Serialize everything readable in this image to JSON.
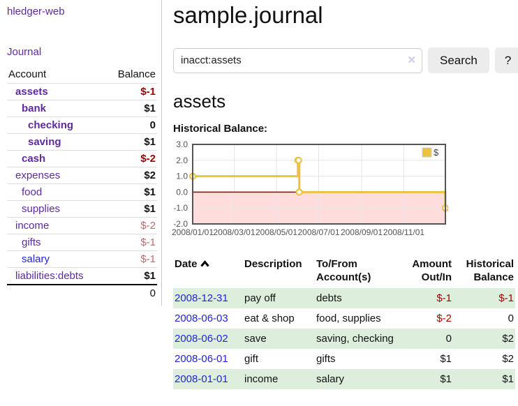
{
  "app": {
    "title": "hledger-web"
  },
  "nav": {
    "journal": "Journal"
  },
  "sidebar": {
    "header": {
      "account": "Account",
      "balance": "Balance"
    },
    "accounts": [
      {
        "name": "assets",
        "balance": "$-1"
      },
      {
        "name": "bank",
        "balance": "$1"
      },
      {
        "name": "checking",
        "balance": "0"
      },
      {
        "name": "saving",
        "balance": "$1"
      },
      {
        "name": "cash",
        "balance": "$-2"
      },
      {
        "name": "expenses",
        "balance": "$2"
      },
      {
        "name": "food",
        "balance": "$1"
      },
      {
        "name": "supplies",
        "balance": "$1"
      },
      {
        "name": "income",
        "balance": "$-2"
      },
      {
        "name": "gifts",
        "balance": "$-1"
      },
      {
        "name": "salary",
        "balance": "$-1"
      },
      {
        "name": "liabilities:debts",
        "balance": "$1"
      }
    ],
    "total": "0"
  },
  "header": {
    "title": "sample.journal"
  },
  "search": {
    "value": "inacct:assets",
    "clear_label": "✕",
    "button_label": "Search",
    "help_label": "?"
  },
  "register": {
    "heading": "assets",
    "chart_title": "Historical Balance:"
  },
  "chart_data": {
    "type": "line",
    "style": "steps",
    "title": "Historical Balance:",
    "series": [
      {
        "name": "$",
        "color": "#edc240",
        "points": [
          [
            "2008-01-01",
            1
          ],
          [
            "2008-06-01",
            2
          ],
          [
            "2008-06-02",
            2
          ],
          [
            "2008-06-03",
            0
          ],
          [
            "2008-12-31",
            -1
          ]
        ]
      }
    ],
    "x_range": [
      "2008-01-01",
      "2008-12-31"
    ],
    "y_range": [
      -2,
      3
    ],
    "x_ticks": [
      {
        "date": "2008-01-01",
        "label": "2008/01/01"
      },
      {
        "date": "2008-03-01",
        "label": "2008/03/01"
      },
      {
        "date": "2008-05-01",
        "label": "2008/05/01"
      },
      {
        "date": "2008-07-01",
        "label": "2008/07/01"
      },
      {
        "date": "2008-09-01",
        "label": "2008/09/01"
      },
      {
        "date": "2008-11-01",
        "label": "2008/11/01"
      }
    ],
    "y_ticks": [
      {
        "value": 3,
        "label": "3.0"
      },
      {
        "value": 2,
        "label": "2.0"
      },
      {
        "value": 1,
        "label": "1.0"
      },
      {
        "value": 0,
        "label": "0.0"
      },
      {
        "value": -1,
        "label": "-1.0"
      },
      {
        "value": -2,
        "label": "-2.0"
      }
    ],
    "grid": true,
    "grid_color": "#e5e5e5",
    "border_color": "#545454",
    "negative_region_fill": "#ffdddd",
    "zero_line_color": "#990000",
    "legend": {
      "position": "ne",
      "label": "$",
      "swatch_color": "#edc240"
    }
  },
  "transactions": {
    "headers": {
      "date": "Date",
      "description": "Description",
      "accounts": "To/From Account(s)",
      "amount": "Amount Out/In",
      "balance": "Historical Balance"
    },
    "rows": [
      {
        "date": "2008-12-31",
        "description": "pay off",
        "accounts": "debts",
        "amount": "$-1",
        "balance": "$-1"
      },
      {
        "date": "2008-06-03",
        "description": "eat & shop",
        "accounts": "food, supplies",
        "amount": "$-2",
        "balance": "0"
      },
      {
        "date": "2008-06-02",
        "description": "save",
        "accounts": "saving, checking",
        "amount": "0",
        "balance": "$2"
      },
      {
        "date": "2008-06-01",
        "description": "gift",
        "accounts": "gifts",
        "amount": "$1",
        "balance": "$2"
      },
      {
        "date": "2008-01-01",
        "description": "income",
        "accounts": "salary",
        "amount": "$1",
        "balance": "$1"
      }
    ]
  }
}
